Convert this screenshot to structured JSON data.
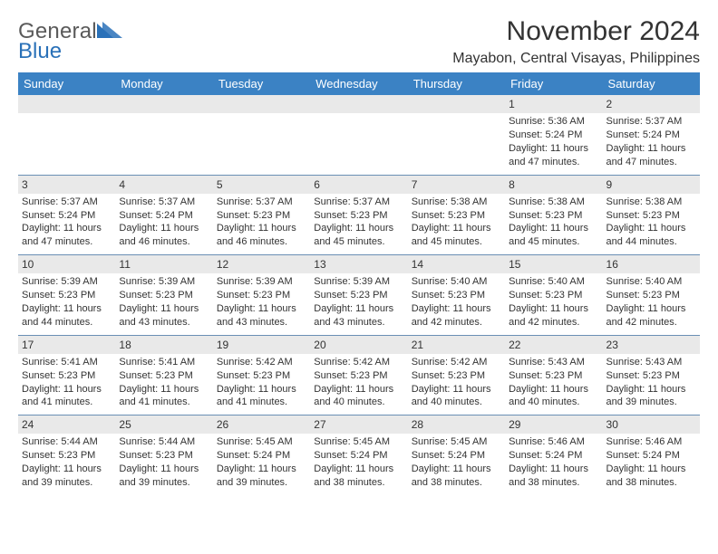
{
  "brand": {
    "word1": "General",
    "word2": "Blue",
    "triangle_color": "#2a71b8",
    "text_color": "#5a5a5a"
  },
  "title": "November 2024",
  "location": "Mayabon, Central Visayas, Philippines",
  "colors": {
    "header_bg": "#3b82c4",
    "header_fg": "#ffffff",
    "daynum_bg": "#e9e9e9",
    "rule": "#6a8fb5",
    "text": "#333333",
    "background": "#ffffff"
  },
  "day_headers": [
    "Sunday",
    "Monday",
    "Tuesday",
    "Wednesday",
    "Thursday",
    "Friday",
    "Saturday"
  ],
  "weeks": [
    {
      "nums": [
        "",
        "",
        "",
        "",
        "",
        "1",
        "2"
      ],
      "cells": [
        "",
        "",
        "",
        "",
        "",
        "Sunrise: 5:36 AM\nSunset: 5:24 PM\nDaylight: 11 hours and 47 minutes.",
        "Sunrise: 5:37 AM\nSunset: 5:24 PM\nDaylight: 11 hours and 47 minutes."
      ]
    },
    {
      "nums": [
        "3",
        "4",
        "5",
        "6",
        "7",
        "8",
        "9"
      ],
      "cells": [
        "Sunrise: 5:37 AM\nSunset: 5:24 PM\nDaylight: 11 hours and 47 minutes.",
        "Sunrise: 5:37 AM\nSunset: 5:24 PM\nDaylight: 11 hours and 46 minutes.",
        "Sunrise: 5:37 AM\nSunset: 5:23 PM\nDaylight: 11 hours and 46 minutes.",
        "Sunrise: 5:37 AM\nSunset: 5:23 PM\nDaylight: 11 hours and 45 minutes.",
        "Sunrise: 5:38 AM\nSunset: 5:23 PM\nDaylight: 11 hours and 45 minutes.",
        "Sunrise: 5:38 AM\nSunset: 5:23 PM\nDaylight: 11 hours and 45 minutes.",
        "Sunrise: 5:38 AM\nSunset: 5:23 PM\nDaylight: 11 hours and 44 minutes."
      ]
    },
    {
      "nums": [
        "10",
        "11",
        "12",
        "13",
        "14",
        "15",
        "16"
      ],
      "cells": [
        "Sunrise: 5:39 AM\nSunset: 5:23 PM\nDaylight: 11 hours and 44 minutes.",
        "Sunrise: 5:39 AM\nSunset: 5:23 PM\nDaylight: 11 hours and 43 minutes.",
        "Sunrise: 5:39 AM\nSunset: 5:23 PM\nDaylight: 11 hours and 43 minutes.",
        "Sunrise: 5:39 AM\nSunset: 5:23 PM\nDaylight: 11 hours and 43 minutes.",
        "Sunrise: 5:40 AM\nSunset: 5:23 PM\nDaylight: 11 hours and 42 minutes.",
        "Sunrise: 5:40 AM\nSunset: 5:23 PM\nDaylight: 11 hours and 42 minutes.",
        "Sunrise: 5:40 AM\nSunset: 5:23 PM\nDaylight: 11 hours and 42 minutes."
      ]
    },
    {
      "nums": [
        "17",
        "18",
        "19",
        "20",
        "21",
        "22",
        "23"
      ],
      "cells": [
        "Sunrise: 5:41 AM\nSunset: 5:23 PM\nDaylight: 11 hours and 41 minutes.",
        "Sunrise: 5:41 AM\nSunset: 5:23 PM\nDaylight: 11 hours and 41 minutes.",
        "Sunrise: 5:42 AM\nSunset: 5:23 PM\nDaylight: 11 hours and 41 minutes.",
        "Sunrise: 5:42 AM\nSunset: 5:23 PM\nDaylight: 11 hours and 40 minutes.",
        "Sunrise: 5:42 AM\nSunset: 5:23 PM\nDaylight: 11 hours and 40 minutes.",
        "Sunrise: 5:43 AM\nSunset: 5:23 PM\nDaylight: 11 hours and 40 minutes.",
        "Sunrise: 5:43 AM\nSunset: 5:23 PM\nDaylight: 11 hours and 39 minutes."
      ]
    },
    {
      "nums": [
        "24",
        "25",
        "26",
        "27",
        "28",
        "29",
        "30"
      ],
      "cells": [
        "Sunrise: 5:44 AM\nSunset: 5:23 PM\nDaylight: 11 hours and 39 minutes.",
        "Sunrise: 5:44 AM\nSunset: 5:23 PM\nDaylight: 11 hours and 39 minutes.",
        "Sunrise: 5:45 AM\nSunset: 5:24 PM\nDaylight: 11 hours and 39 minutes.",
        "Sunrise: 5:45 AM\nSunset: 5:24 PM\nDaylight: 11 hours and 38 minutes.",
        "Sunrise: 5:45 AM\nSunset: 5:24 PM\nDaylight: 11 hours and 38 minutes.",
        "Sunrise: 5:46 AM\nSunset: 5:24 PM\nDaylight: 11 hours and 38 minutes.",
        "Sunrise: 5:46 AM\nSunset: 5:24 PM\nDaylight: 11 hours and 38 minutes."
      ]
    }
  ]
}
